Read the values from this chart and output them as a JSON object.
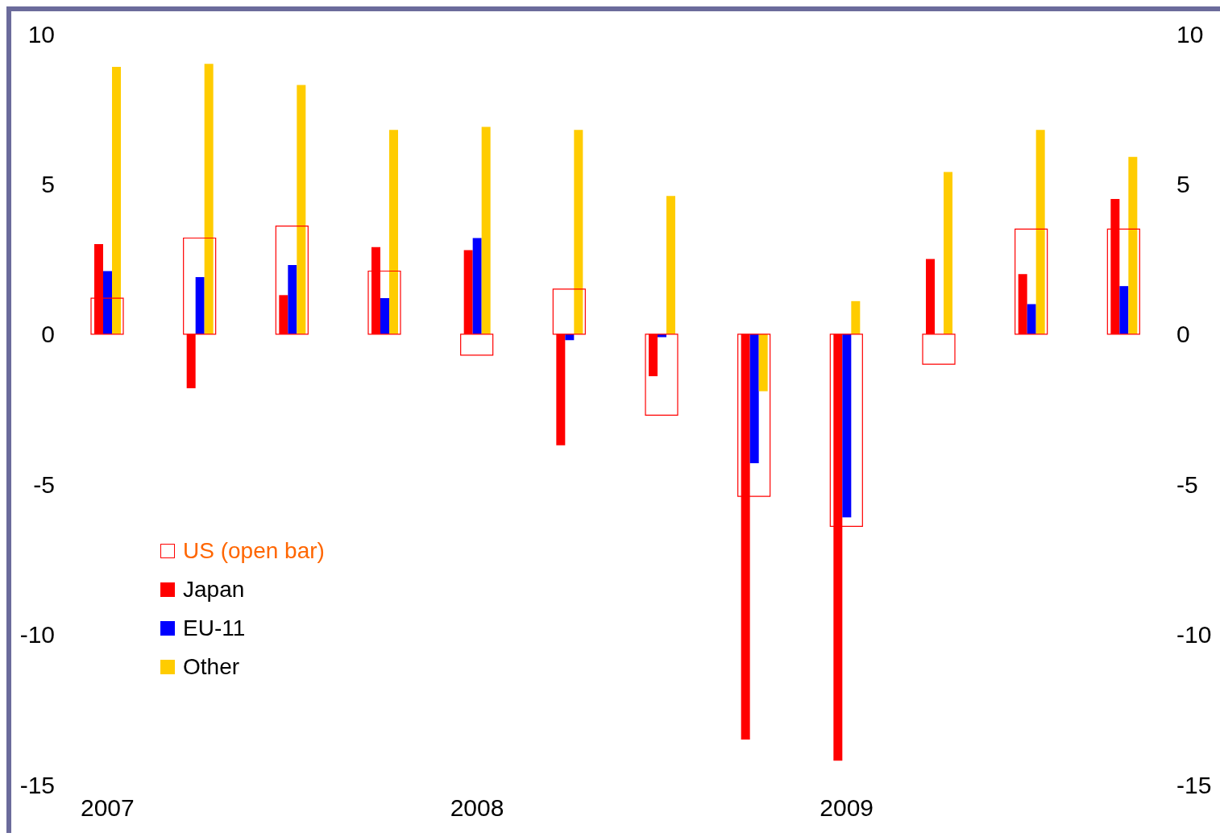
{
  "chart_data": {
    "type": "bar",
    "categories": [
      "2007",
      null,
      null,
      null,
      "2008",
      null,
      null,
      null,
      "2009",
      null,
      null,
      null
    ],
    "series": [
      {
        "name": "US (open bar)",
        "color": "#ff0000",
        "values": [
          1.2,
          3.2,
          3.6,
          2.1,
          -0.7,
          1.5,
          -2.7,
          -5.4,
          -6.4,
          -1.0,
          3.5,
          3.5
        ]
      },
      {
        "name": "Japan",
        "color": "#ff0000",
        "values": [
          3.0,
          -1.8,
          1.3,
          2.9,
          2.8,
          -3.7,
          -1.4,
          -13.5,
          -14.2,
          2.5,
          2.0,
          4.5
        ]
      },
      {
        "name": "EU-11",
        "color": "#0000ff",
        "values": [
          2.1,
          1.9,
          2.3,
          1.2,
          3.2,
          -0.2,
          -0.1,
          -4.3,
          -6.1,
          0,
          1.0,
          1.6
        ]
      },
      {
        "name": "Other",
        "color": "#ffcc00",
        "values": [
          8.9,
          9.0,
          8.3,
          6.8,
          6.9,
          6.8,
          4.6,
          -1.9,
          1.1,
          5.4,
          6.8,
          5.9
        ]
      }
    ],
    "ylim": [
      -15,
      10
    ],
    "yticks": [
      -15,
      -10,
      -5,
      0,
      5,
      10
    ],
    "y2lim": [
      -15,
      10
    ],
    "y2ticks": [
      -15,
      -10,
      -5,
      0,
      5,
      10
    ],
    "grid": false,
    "legend": "left"
  }
}
